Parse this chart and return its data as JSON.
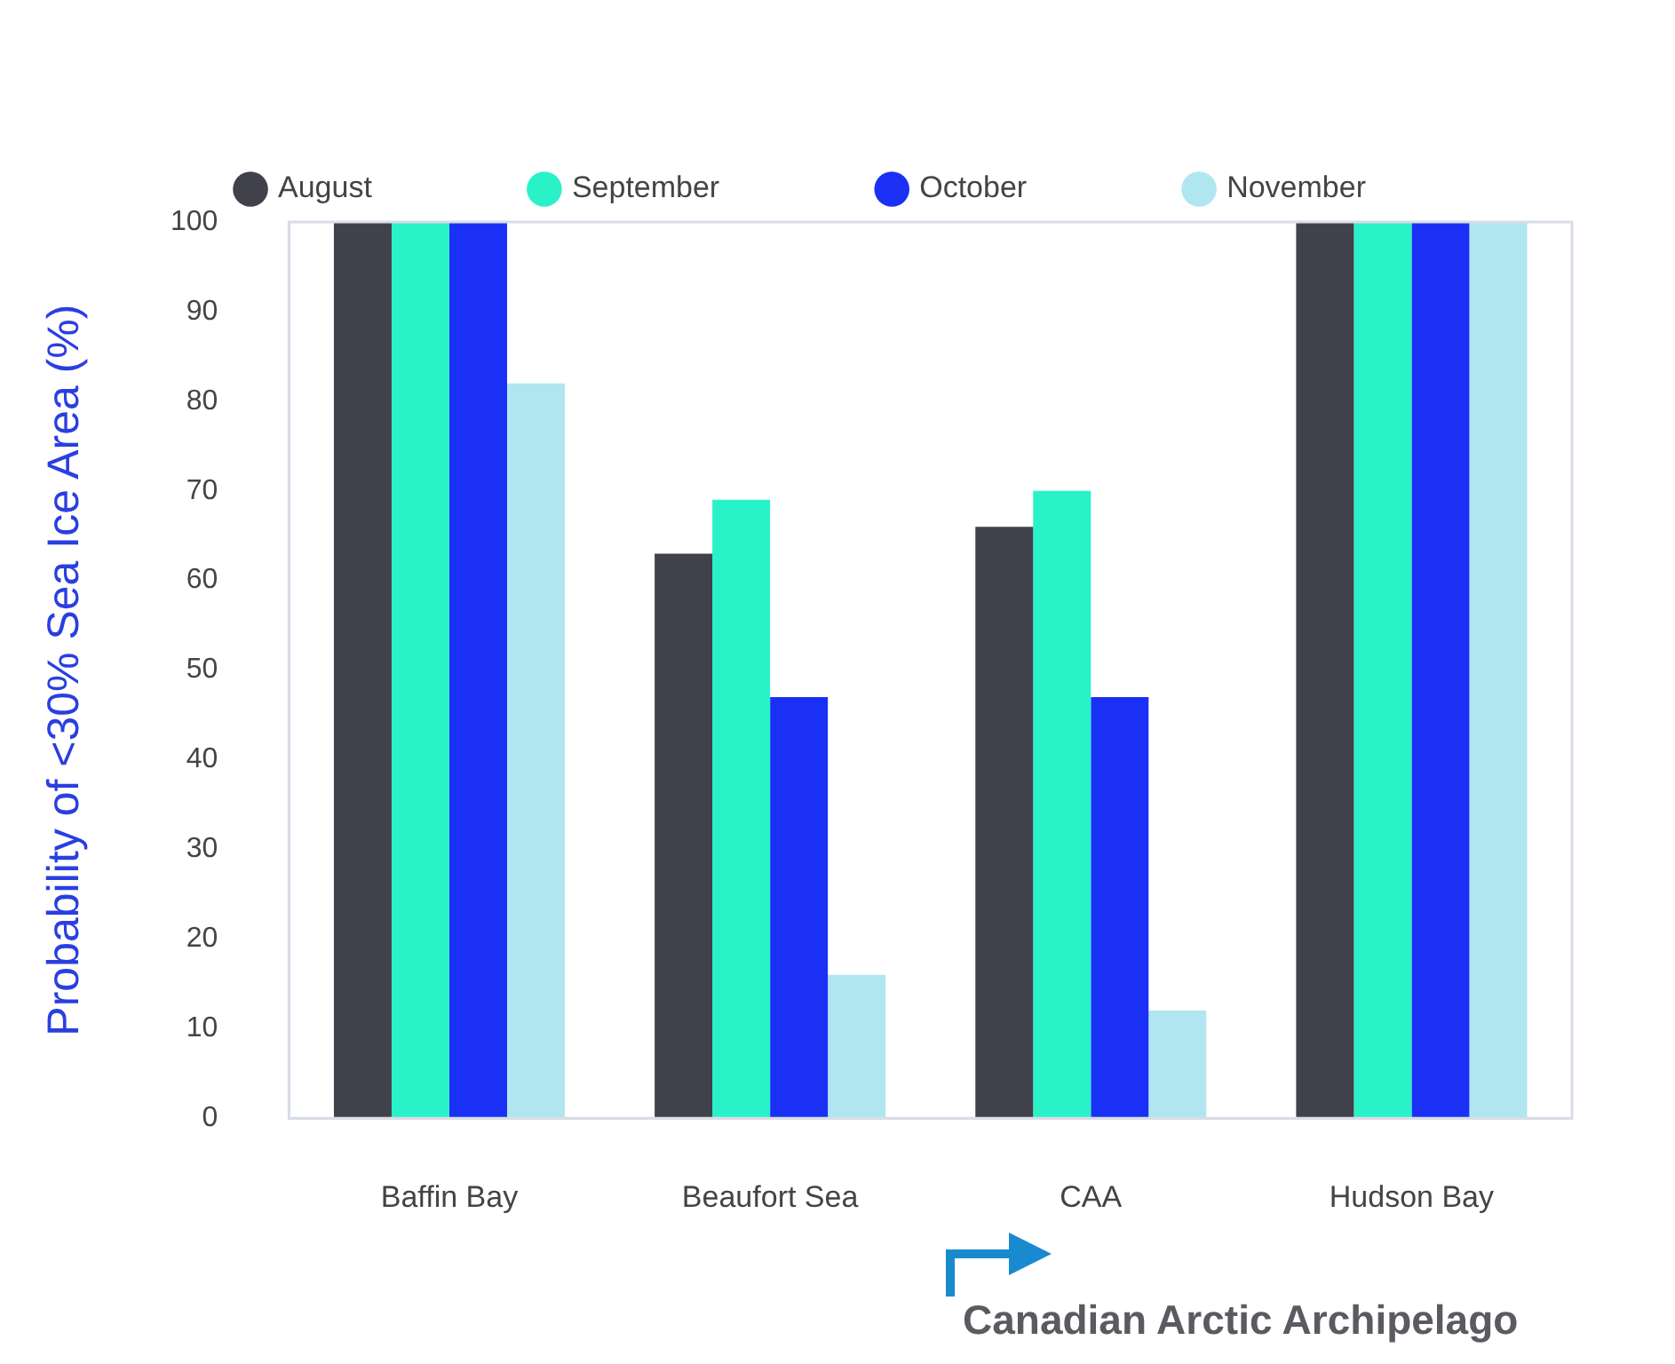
{
  "chart_data": {
    "type": "bar",
    "ylabel": "Probability of <30% Sea Ice Area (%)",
    "categories": [
      "Baffin Bay",
      "Beaufort Sea",
      "CAA",
      "Hudson Bay"
    ],
    "series": [
      {
        "name": "August",
        "color": "#40414b",
        "values": [
          100,
          63,
          66,
          100
        ]
      },
      {
        "name": "September",
        "color": "#2af2c8",
        "values": [
          100,
          69,
          70,
          100
        ]
      },
      {
        "name": "October",
        "color": "#1a30f5",
        "values": [
          100,
          47,
          47,
          100
        ]
      },
      {
        "name": "November",
        "color": "#b0e6f0",
        "values": [
          82,
          16,
          12,
          100
        ]
      }
    ],
    "ylim": [
      0,
      100
    ],
    "yticks": [
      0,
      10,
      20,
      30,
      40,
      50,
      60,
      70,
      80,
      90,
      100
    ],
    "grid": false,
    "legend": "top",
    "marker": "circle",
    "annotations": [
      "Canadian Arctic Archipelago"
    ]
  }
}
